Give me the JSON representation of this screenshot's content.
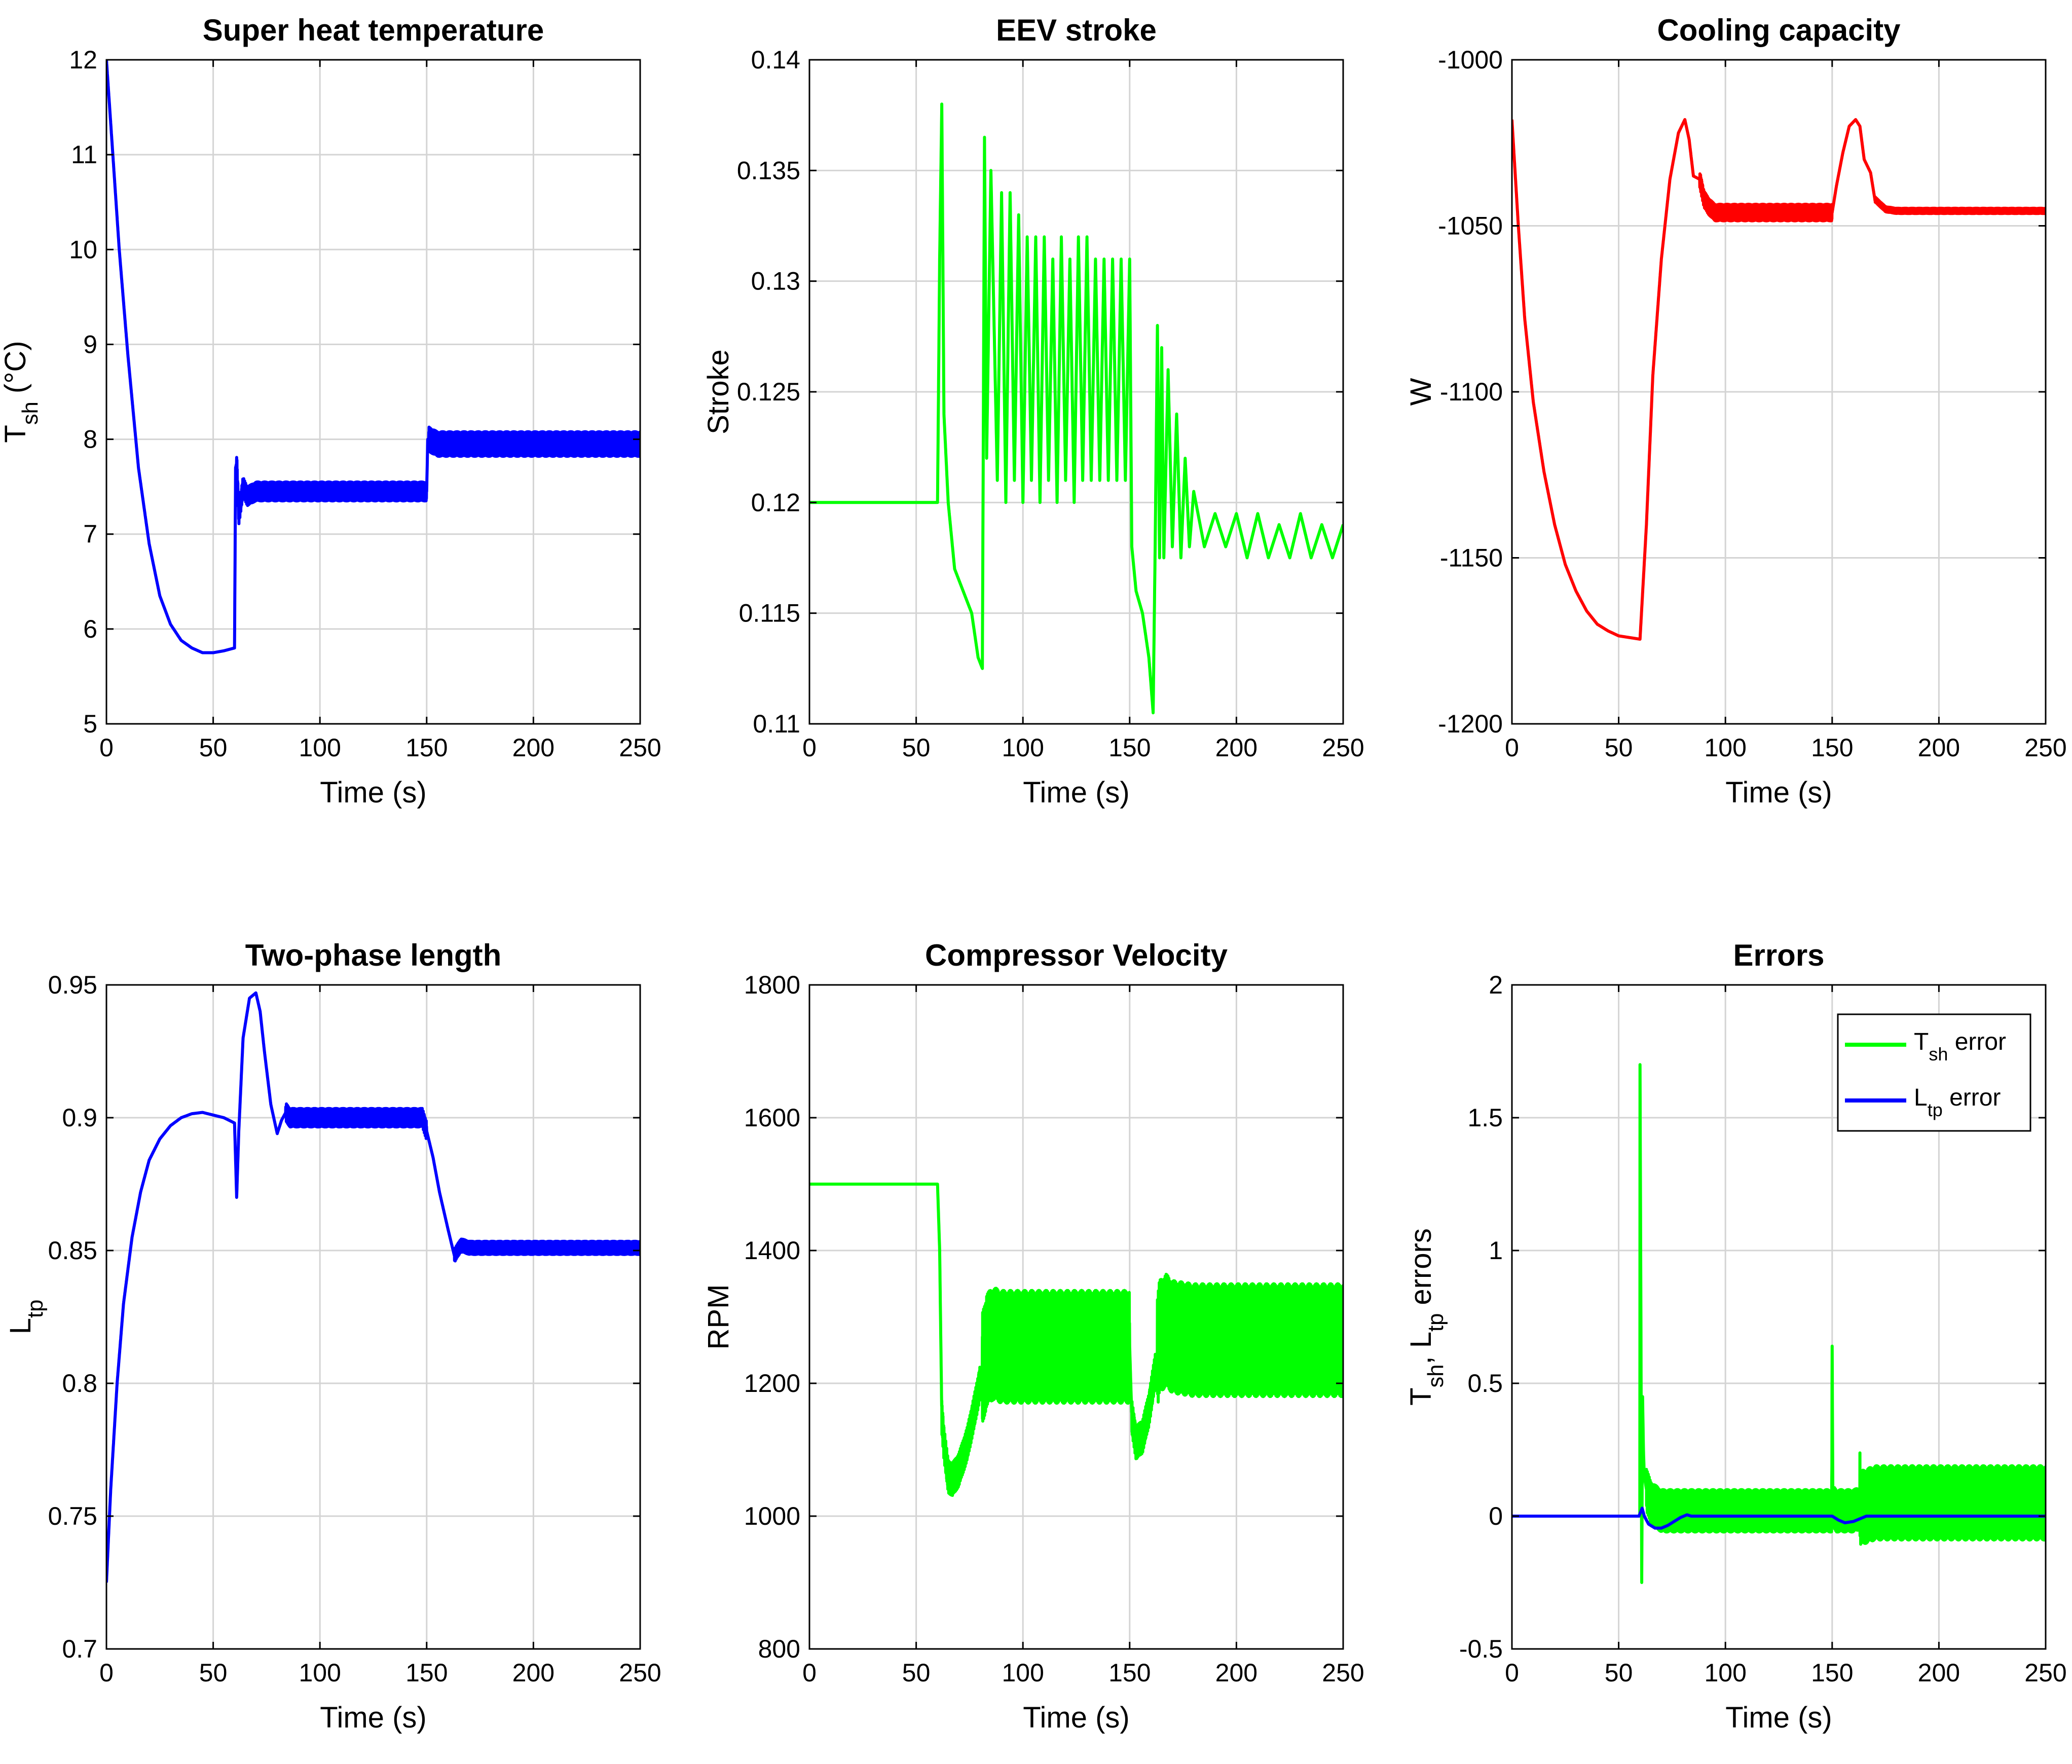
{
  "chart_data": [
    {
      "type": "line",
      "title": "Super heat temperature",
      "xlabel": "Time (s)",
      "ylabel": "T_sh (°C)",
      "ylabel_parts": {
        "main": "T",
        "sub": "sh",
        "rest": " (°C)"
      },
      "xlim": [
        0,
        250
      ],
      "ylim": [
        5,
        12
      ],
      "xticks": [
        0,
        50,
        100,
        150,
        200,
        250
      ],
      "yticks": [
        5,
        6,
        7,
        8,
        9,
        10,
        11,
        12
      ],
      "grid": true,
      "series": [
        {
          "name": "T_sh",
          "color": "#0000ff",
          "x": [
            0,
            3,
            6,
            10,
            15,
            20,
            25,
            30,
            35,
            40,
            45,
            50,
            55,
            60,
            60.5,
            61,
            62,
            64,
            66,
            70,
            80,
            90,
            100,
            110,
            120,
            130,
            140,
            150,
            150.5,
            151,
            155,
            165,
            180,
            200,
            220,
            240,
            250
          ],
          "y": [
            12.0,
            11.0,
            10.0,
            8.9,
            7.7,
            6.9,
            6.35,
            6.05,
            5.88,
            5.8,
            5.75,
            5.75,
            5.77,
            5.8,
            7.7,
            7.75,
            7.2,
            7.5,
            7.4,
            7.45,
            7.45,
            7.45,
            7.45,
            7.45,
            7.45,
            7.45,
            7.45,
            7.45,
            8.0,
            8.0,
            7.95,
            7.95,
            7.95,
            7.95,
            7.95,
            7.95,
            7.95
          ],
          "ripple": [
            {
              "from": 61,
              "to": 150,
              "amp": 0.1
            },
            {
              "from": 151,
              "to": 250,
              "amp": 0.13
            }
          ]
        }
      ]
    },
    {
      "type": "line",
      "title": "EEV stroke",
      "xlabel": "Time (s)",
      "ylabel": "Stroke",
      "xlim": [
        0,
        250
      ],
      "ylim": [
        0.11,
        0.14
      ],
      "xticks": [
        0,
        50,
        100,
        150,
        200,
        250
      ],
      "yticks": [
        0.11,
        0.115,
        0.12,
        0.125,
        0.13,
        0.135,
        0.14
      ],
      "grid": true,
      "series": [
        {
          "name": "Stroke",
          "color": "#00ff00",
          "x": [
            0,
            60,
            61,
            62,
            63,
            65,
            68,
            72,
            76,
            79,
            81,
            82,
            83,
            85,
            88,
            90,
            92,
            94,
            96,
            98,
            100,
            102,
            104,
            106,
            108,
            110,
            112,
            114,
            116,
            118,
            120,
            122,
            124,
            126,
            128,
            130,
            132,
            134,
            136,
            138,
            140,
            142,
            144,
            146,
            148,
            150,
            151,
            153,
            156,
            159,
            161,
            162,
            163,
            164,
            165,
            166,
            168,
            170,
            172,
            174,
            176,
            178,
            180,
            185,
            190,
            195,
            200,
            205,
            210,
            215,
            220,
            225,
            230,
            235,
            240,
            245,
            250
          ],
          "y": [
            0.12,
            0.12,
            0.131,
            0.138,
            0.124,
            0.12,
            0.117,
            0.116,
            0.115,
            0.113,
            0.1125,
            0.1365,
            0.122,
            0.135,
            0.121,
            0.134,
            0.12,
            0.134,
            0.121,
            0.133,
            0.12,
            0.132,
            0.121,
            0.132,
            0.12,
            0.132,
            0.121,
            0.131,
            0.12,
            0.132,
            0.121,
            0.131,
            0.12,
            0.132,
            0.121,
            0.132,
            0.121,
            0.131,
            0.121,
            0.131,
            0.121,
            0.131,
            0.121,
            0.131,
            0.121,
            0.131,
            0.118,
            0.116,
            0.115,
            0.113,
            0.1105,
            0.1185,
            0.128,
            0.1175,
            0.127,
            0.1175,
            0.126,
            0.118,
            0.124,
            0.1175,
            0.122,
            0.118,
            0.1205,
            0.118,
            0.1195,
            0.118,
            0.1195,
            0.1175,
            0.1195,
            0.1175,
            0.119,
            0.1175,
            0.1195,
            0.1175,
            0.119,
            0.1175,
            0.119
          ]
        }
      ]
    },
    {
      "type": "line",
      "title": "Cooling capacity",
      "xlabel": "Time (s)",
      "ylabel": "W",
      "xlim": [
        0,
        250
      ],
      "ylim": [
        -1200,
        -1000
      ],
      "xticks": [
        0,
        50,
        100,
        150,
        200,
        250
      ],
      "yticks": [
        -1200,
        -1150,
        -1100,
        -1050,
        -1000
      ],
      "grid": true,
      "series": [
        {
          "name": "Cooling capacity",
          "color": "#ff0000",
          "x": [
            0,
            3,
            6,
            10,
            15,
            20,
            25,
            30,
            35,
            40,
            45,
            50,
            55,
            60,
            63,
            66,
            70,
            74,
            78,
            81,
            83,
            85,
            88,
            90,
            92,
            95,
            100,
            110,
            120,
            130,
            140,
            150,
            152,
            155,
            158,
            161,
            163,
            165,
            168,
            170,
            175,
            180,
            200,
            220,
            240,
            250
          ],
          "y": [
            -1018,
            -1050,
            -1078,
            -1103,
            -1124,
            -1140,
            -1152,
            -1160,
            -1166,
            -1170,
            -1172,
            -1173.5,
            -1174,
            -1174.5,
            -1140,
            -1095,
            -1060,
            -1036,
            -1022,
            -1018,
            -1024,
            -1035,
            -1036,
            -1042,
            -1044,
            -1046,
            -1046,
            -1046,
            -1046,
            -1046,
            -1046,
            -1046,
            -1038,
            -1028,
            -1020,
            -1018,
            -1020,
            -1030,
            -1034,
            -1042,
            -1045,
            -1045.5,
            -1045.5,
            -1045.5,
            -1045.5,
            -1045.5
          ],
          "ripple": [
            {
              "from": 88,
              "to": 150,
              "amp": 2.5
            },
            {
              "from": 170,
              "to": 250,
              "amp": 0.8
            }
          ]
        }
      ]
    },
    {
      "type": "line",
      "title": "Two-phase length",
      "xlabel": "Time (s)",
      "ylabel": "L_tp",
      "ylabel_parts": {
        "main": "L",
        "sub": "tp",
        "rest": ""
      },
      "xlim": [
        0,
        250
      ],
      "ylim": [
        0.7,
        0.95
      ],
      "xticks": [
        0,
        50,
        100,
        150,
        200,
        250
      ],
      "yticks": [
        0.7,
        0.75,
        0.8,
        0.85,
        0.9,
        0.95
      ],
      "grid": true,
      "series": [
        {
          "name": "L_tp",
          "color": "#0000ff",
          "x": [
            0,
            2,
            5,
            8,
            12,
            16,
            20,
            25,
            30,
            35,
            40,
            45,
            50,
            55,
            60,
            61,
            62,
            64,
            67,
            70,
            72,
            74,
            77,
            80,
            82,
            84,
            86,
            90,
            100,
            110,
            120,
            130,
            140,
            148,
            150,
            153,
            156,
            160,
            163,
            166,
            170,
            180,
            200,
            220,
            240,
            250
          ],
          "y": [
            0.725,
            0.76,
            0.8,
            0.83,
            0.855,
            0.872,
            0.884,
            0.892,
            0.897,
            0.9,
            0.9015,
            0.902,
            0.901,
            0.9,
            0.898,
            0.87,
            0.895,
            0.93,
            0.945,
            0.947,
            0.94,
            0.925,
            0.905,
            0.894,
            0.899,
            0.902,
            0.9,
            0.9,
            0.9,
            0.9,
            0.9,
            0.9,
            0.9,
            0.9,
            0.895,
            0.885,
            0.872,
            0.858,
            0.848,
            0.852,
            0.851,
            0.851,
            0.851,
            0.851,
            0.851,
            0.851
          ],
          "ripple": [
            {
              "from": 84,
              "to": 150,
              "amp": 0.0035
            },
            {
              "from": 163,
              "to": 250,
              "amp": 0.0025
            }
          ]
        }
      ]
    },
    {
      "type": "line",
      "title": "Compressor Velocity",
      "xlabel": "Time (s)",
      "ylabel": "RPM",
      "xlim": [
        0,
        250
      ],
      "ylim": [
        800,
        1800
      ],
      "xticks": [
        0,
        50,
        100,
        150,
        200,
        250
      ],
      "yticks": [
        800,
        1000,
        1200,
        1400,
        1600,
        1800
      ],
      "grid": true,
      "series": [
        {
          "name": "RPM",
          "color": "#00ff00",
          "x": [
            0,
            60,
            61,
            62,
            63,
            65,
            67,
            70,
            74,
            78,
            81,
            83,
            86,
            90,
            95,
            100,
            110,
            120,
            130,
            140,
            150,
            151,
            153,
            156,
            159,
            162,
            164,
            167,
            170,
            180,
            190,
            200,
            220,
            240,
            250
          ],
          "y": [
            1500,
            1500,
            1400,
            1150,
            1110,
            1060,
            1055,
            1070,
            1110,
            1170,
            1220,
            1250,
            1260,
            1255,
            1255,
            1255,
            1255,
            1255,
            1255,
            1255,
            1255,
            1150,
            1110,
            1120,
            1160,
            1220,
            1270,
            1280,
            1270,
            1265,
            1265,
            1265,
            1265,
            1265,
            1265
          ],
          "ripple": [
            {
              "from": 62,
              "to": 80,
              "amp": 25
            },
            {
              "from": 81,
              "to": 150,
              "amp": 85
            },
            {
              "from": 151,
              "to": 162,
              "amp": 25
            },
            {
              "from": 163,
              "to": 250,
              "amp": 85
            }
          ]
        }
      ]
    },
    {
      "type": "line",
      "title": "Errors",
      "xlabel": "Time (s)",
      "ylabel": "T_sh, L_tp errors",
      "ylabel_parts": {
        "a": "T",
        "a_sub": "sh",
        "mid": ", L",
        "b_sub": "tp",
        "rest": " errors"
      },
      "xlim": [
        0,
        250
      ],
      "ylim": [
        -0.5,
        2
      ],
      "xticks": [
        0,
        50,
        100,
        150,
        200,
        250
      ],
      "yticks": [
        -0.5,
        0,
        0.5,
        1,
        1.5,
        2
      ],
      "grid": true,
      "legend": {
        "position": "top-right",
        "entries": [
          {
            "label_main": "T",
            "label_sub": "sh",
            "label_rest": " error",
            "color": "#00ff00"
          },
          {
            "label_main": "L",
            "label_sub": "tp",
            "label_rest": " error",
            "color": "#0000ff"
          }
        ]
      },
      "series": [
        {
          "name": "T_sh error",
          "color": "#00ff00",
          "x": [
            0,
            59.9,
            60,
            60.4,
            60.8,
            61.2,
            61.6,
            62,
            63,
            65,
            70,
            80,
            90,
            100,
            120,
            149.8,
            150,
            150.3,
            150.8,
            152,
            160,
            170,
            200,
            230,
            250
          ],
          "y": [
            0,
            0,
            1.7,
            0.8,
            -0.25,
            0.45,
            0.25,
            0.15,
            0.1,
            0.05,
            0.02,
            0.02,
            0.02,
            0.02,
            0.02,
            0.02,
            0.64,
            0.1,
            0.03,
            0.02,
            0.02,
            0.05,
            0.05,
            0.05,
            0.05
          ],
          "ripple": [
            {
              "from": 63,
              "to": 150,
              "amp": 0.08
            },
            {
              "from": 151,
              "to": 163,
              "amp": 0.08
            },
            {
              "from": 163,
              "to": 250,
              "amp": 0.14
            }
          ]
        },
        {
          "name": "L_tp error",
          "color": "#0000ff",
          "x": [
            0,
            59.5,
            61,
            62,
            64,
            67,
            70,
            73,
            76,
            79,
            82,
            84,
            90,
            100,
            120,
            150,
            153,
            156,
            160,
            163,
            166,
            170,
            200,
            250
          ],
          "y": [
            0,
            0,
            0.03,
            0.0,
            -0.03,
            -0.045,
            -0.045,
            -0.035,
            -0.02,
            -0.005,
            0.005,
            0.0,
            0.0,
            0.0,
            0.0,
            0.0,
            -0.015,
            -0.025,
            -0.02,
            -0.01,
            0.0,
            0.0,
            0.0,
            0.0
          ]
        }
      ]
    }
  ]
}
